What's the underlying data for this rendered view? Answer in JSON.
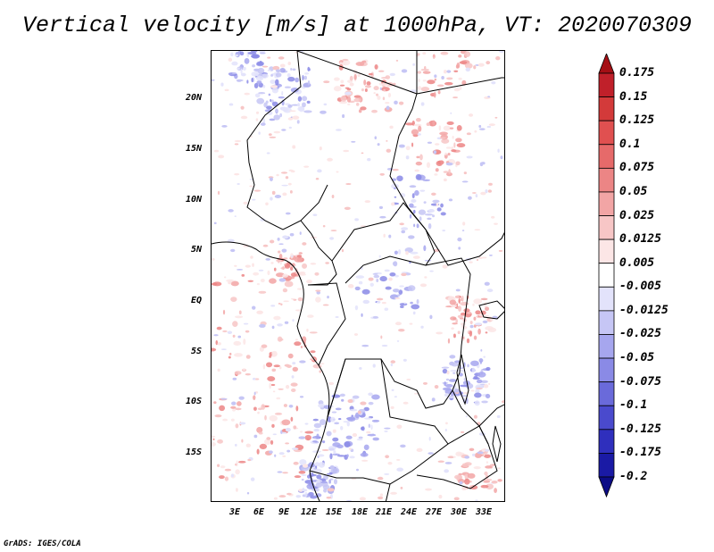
{
  "title": "Vertical velocity [m/s] at 1000hPa, VT: 2020070309",
  "footer": "GrADS: IGES/COLA",
  "map": {
    "lat_labels": [
      "20N",
      "15N",
      "10N",
      "5N",
      "EQ",
      "5S",
      "10S",
      "15S"
    ],
    "lon_labels": [
      "3E",
      "6E",
      "9E",
      "12E",
      "15E",
      "18E",
      "21E",
      "24E",
      "27E",
      "30E",
      "33E"
    ]
  },
  "colorbar": {
    "labels": [
      "0.175",
      "0.15",
      "0.125",
      "0.1",
      "0.075",
      "0.05",
      "0.025",
      "0.0125",
      "0.005",
      "-0.005",
      "-0.0125",
      "-0.025",
      "-0.05",
      "-0.075",
      "-0.1",
      "-0.125",
      "-0.175",
      "-0.2"
    ],
    "colors": [
      "#a50f15",
      "#c0202a",
      "#d33a3a",
      "#e05050",
      "#e66a6a",
      "#ec8585",
      "#f2a5a5",
      "#f7c6c6",
      "#fce6e6",
      "#ffffff",
      "#e3e3fb",
      "#c6c6f5",
      "#a6a6ee",
      "#8a8ae6",
      "#6a6ada",
      "#4a4acd",
      "#2f2fbd",
      "#1a1aa5",
      "#0c0c86"
    ]
  }
}
